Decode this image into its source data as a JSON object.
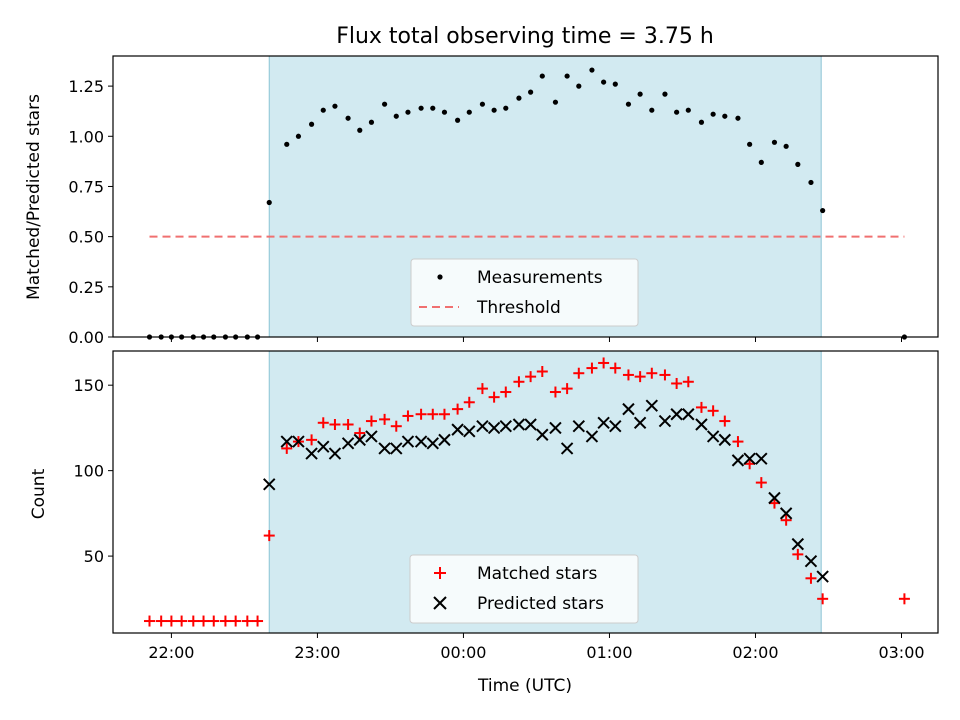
{
  "chart_data": [
    {
      "type": "scatter",
      "title": "Flux total observing time = 3.75 h",
      "ylabel": "Matched/Predicted stars",
      "xlabel": "",
      "x_unit": "hours from 00:00 UTC",
      "ylim": [
        0,
        1.4
      ],
      "yticks": [
        "0.00",
        "0.25",
        "0.50",
        "0.75",
        "1.00",
        "1.25"
      ],
      "xlim": [
        -2.4,
        3.25
      ],
      "grid": false,
      "legend_position": "bottom-center",
      "highlight_span": {
        "start": -1.33,
        "end": 2.45,
        "color": "#add8e6"
      },
      "threshold": {
        "name": "Threshold",
        "value": 0.5,
        "x_start": -2.15,
        "x_end": 3.02,
        "color": "#f07070"
      },
      "series": [
        {
          "name": "Measurements",
          "color": "#000000",
          "marker": "dot",
          "x": [
            -2.15,
            -2.07,
            -2.0,
            -1.93,
            -1.85,
            -1.78,
            -1.71,
            -1.63,
            -1.56,
            -1.48,
            -1.41,
            -1.33,
            -1.21,
            -1.13,
            -1.04,
            -0.96,
            -0.88,
            -0.79,
            -0.71,
            -0.63,
            -0.54,
            -0.46,
            -0.38,
            -0.29,
            -0.21,
            -0.13,
            -0.04,
            0.04,
            0.13,
            0.21,
            0.29,
            0.38,
            0.46,
            0.54,
            0.63,
            0.71,
            0.79,
            0.88,
            0.96,
            1.04,
            1.13,
            1.21,
            1.29,
            1.38,
            1.46,
            1.54,
            1.63,
            1.71,
            1.79,
            1.88,
            1.96,
            2.04,
            2.13,
            2.21,
            2.29,
            2.38,
            2.46,
            3.02
          ],
          "y": [
            0,
            0,
            0,
            0,
            0,
            0,
            0,
            0,
            0,
            0,
            0,
            0.67,
            0.96,
            1.0,
            1.06,
            1.13,
            1.15,
            1.09,
            1.03,
            1.07,
            1.16,
            1.1,
            1.12,
            1.14,
            1.14,
            1.12,
            1.08,
            1.12,
            1.16,
            1.13,
            1.14,
            1.19,
            1.22,
            1.3,
            1.17,
            1.3,
            1.25,
            1.33,
            1.27,
            1.26,
            1.16,
            1.21,
            1.13,
            1.21,
            1.12,
            1.13,
            1.07,
            1.11,
            1.1,
            1.09,
            0.96,
            0.87,
            0.97,
            0.95,
            0.86,
            0.77,
            0.63,
            0
          ]
        }
      ]
    },
    {
      "type": "scatter",
      "title": "",
      "ylabel": "Count",
      "xlabel": "Time (UTC)",
      "ylim": [
        5,
        170
      ],
      "yticks": [
        "50",
        "100",
        "150"
      ],
      "xlim": [
        -2.4,
        3.25
      ],
      "xticks": [
        "22:00",
        "23:00",
        "00:00",
        "01:00",
        "02:00",
        "03:00"
      ],
      "grid": false,
      "legend_position": "bottom-center",
      "highlight_span": {
        "start": -1.33,
        "end": 2.45,
        "color": "#add8e6"
      },
      "series": [
        {
          "name": "Matched stars",
          "color": "#ff0000",
          "marker": "plus",
          "x": [
            -2.15,
            -2.07,
            -2.0,
            -1.93,
            -1.85,
            -1.78,
            -1.71,
            -1.63,
            -1.56,
            -1.48,
            -1.41,
            -1.33,
            -1.21,
            -1.13,
            -1.04,
            -0.96,
            -0.88,
            -0.79,
            -0.71,
            -0.63,
            -0.54,
            -0.46,
            -0.38,
            -0.29,
            -0.21,
            -0.13,
            -0.04,
            0.04,
            0.13,
            0.21,
            0.29,
            0.38,
            0.46,
            0.54,
            0.63,
            0.71,
            0.79,
            0.88,
            0.96,
            1.04,
            1.13,
            1.21,
            1.29,
            1.38,
            1.46,
            1.54,
            1.63,
            1.71,
            1.79,
            1.88,
            1.96,
            2.04,
            2.13,
            2.21,
            2.29,
            2.38,
            2.46,
            3.02
          ],
          "y": [
            12,
            12,
            12,
            12,
            12,
            12,
            12,
            12,
            12,
            12,
            12,
            62,
            113,
            117,
            118,
            128,
            127,
            127,
            122,
            129,
            130,
            126,
            132,
            133,
            133,
            133,
            136,
            140,
            148,
            143,
            146,
            152,
            155,
            158,
            146,
            148,
            157,
            160,
            163,
            160,
            156,
            155,
            157,
            156,
            151,
            152,
            137,
            135,
            129,
            117,
            104,
            93,
            81,
            71,
            51,
            37,
            25,
            25
          ]
        },
        {
          "name": "Predicted stars",
          "color": "#000000",
          "marker": "x",
          "x": [
            -1.33,
            -1.21,
            -1.13,
            -1.04,
            -0.96,
            -0.88,
            -0.79,
            -0.71,
            -0.63,
            -0.54,
            -0.46,
            -0.38,
            -0.29,
            -0.21,
            -0.13,
            -0.04,
            0.04,
            0.13,
            0.21,
            0.29,
            0.38,
            0.46,
            0.54,
            0.63,
            0.71,
            0.79,
            0.88,
            0.96,
            1.04,
            1.13,
            1.21,
            1.29,
            1.38,
            1.46,
            1.54,
            1.63,
            1.71,
            1.79,
            1.88,
            1.96,
            2.04,
            2.13,
            2.21,
            2.29,
            2.38,
            2.46
          ],
          "y": [
            92,
            117,
            117,
            110,
            114,
            110,
            116,
            118,
            120,
            113,
            113,
            117,
            117,
            116,
            118,
            124,
            123,
            126,
            125,
            126,
            127,
            127,
            121,
            125,
            113,
            126,
            120,
            128,
            126,
            136,
            128,
            138,
            129,
            133,
            133,
            127,
            120,
            118,
            106,
            107,
            107,
            84,
            75,
            57,
            47,
            38
          ]
        }
      ]
    }
  ]
}
